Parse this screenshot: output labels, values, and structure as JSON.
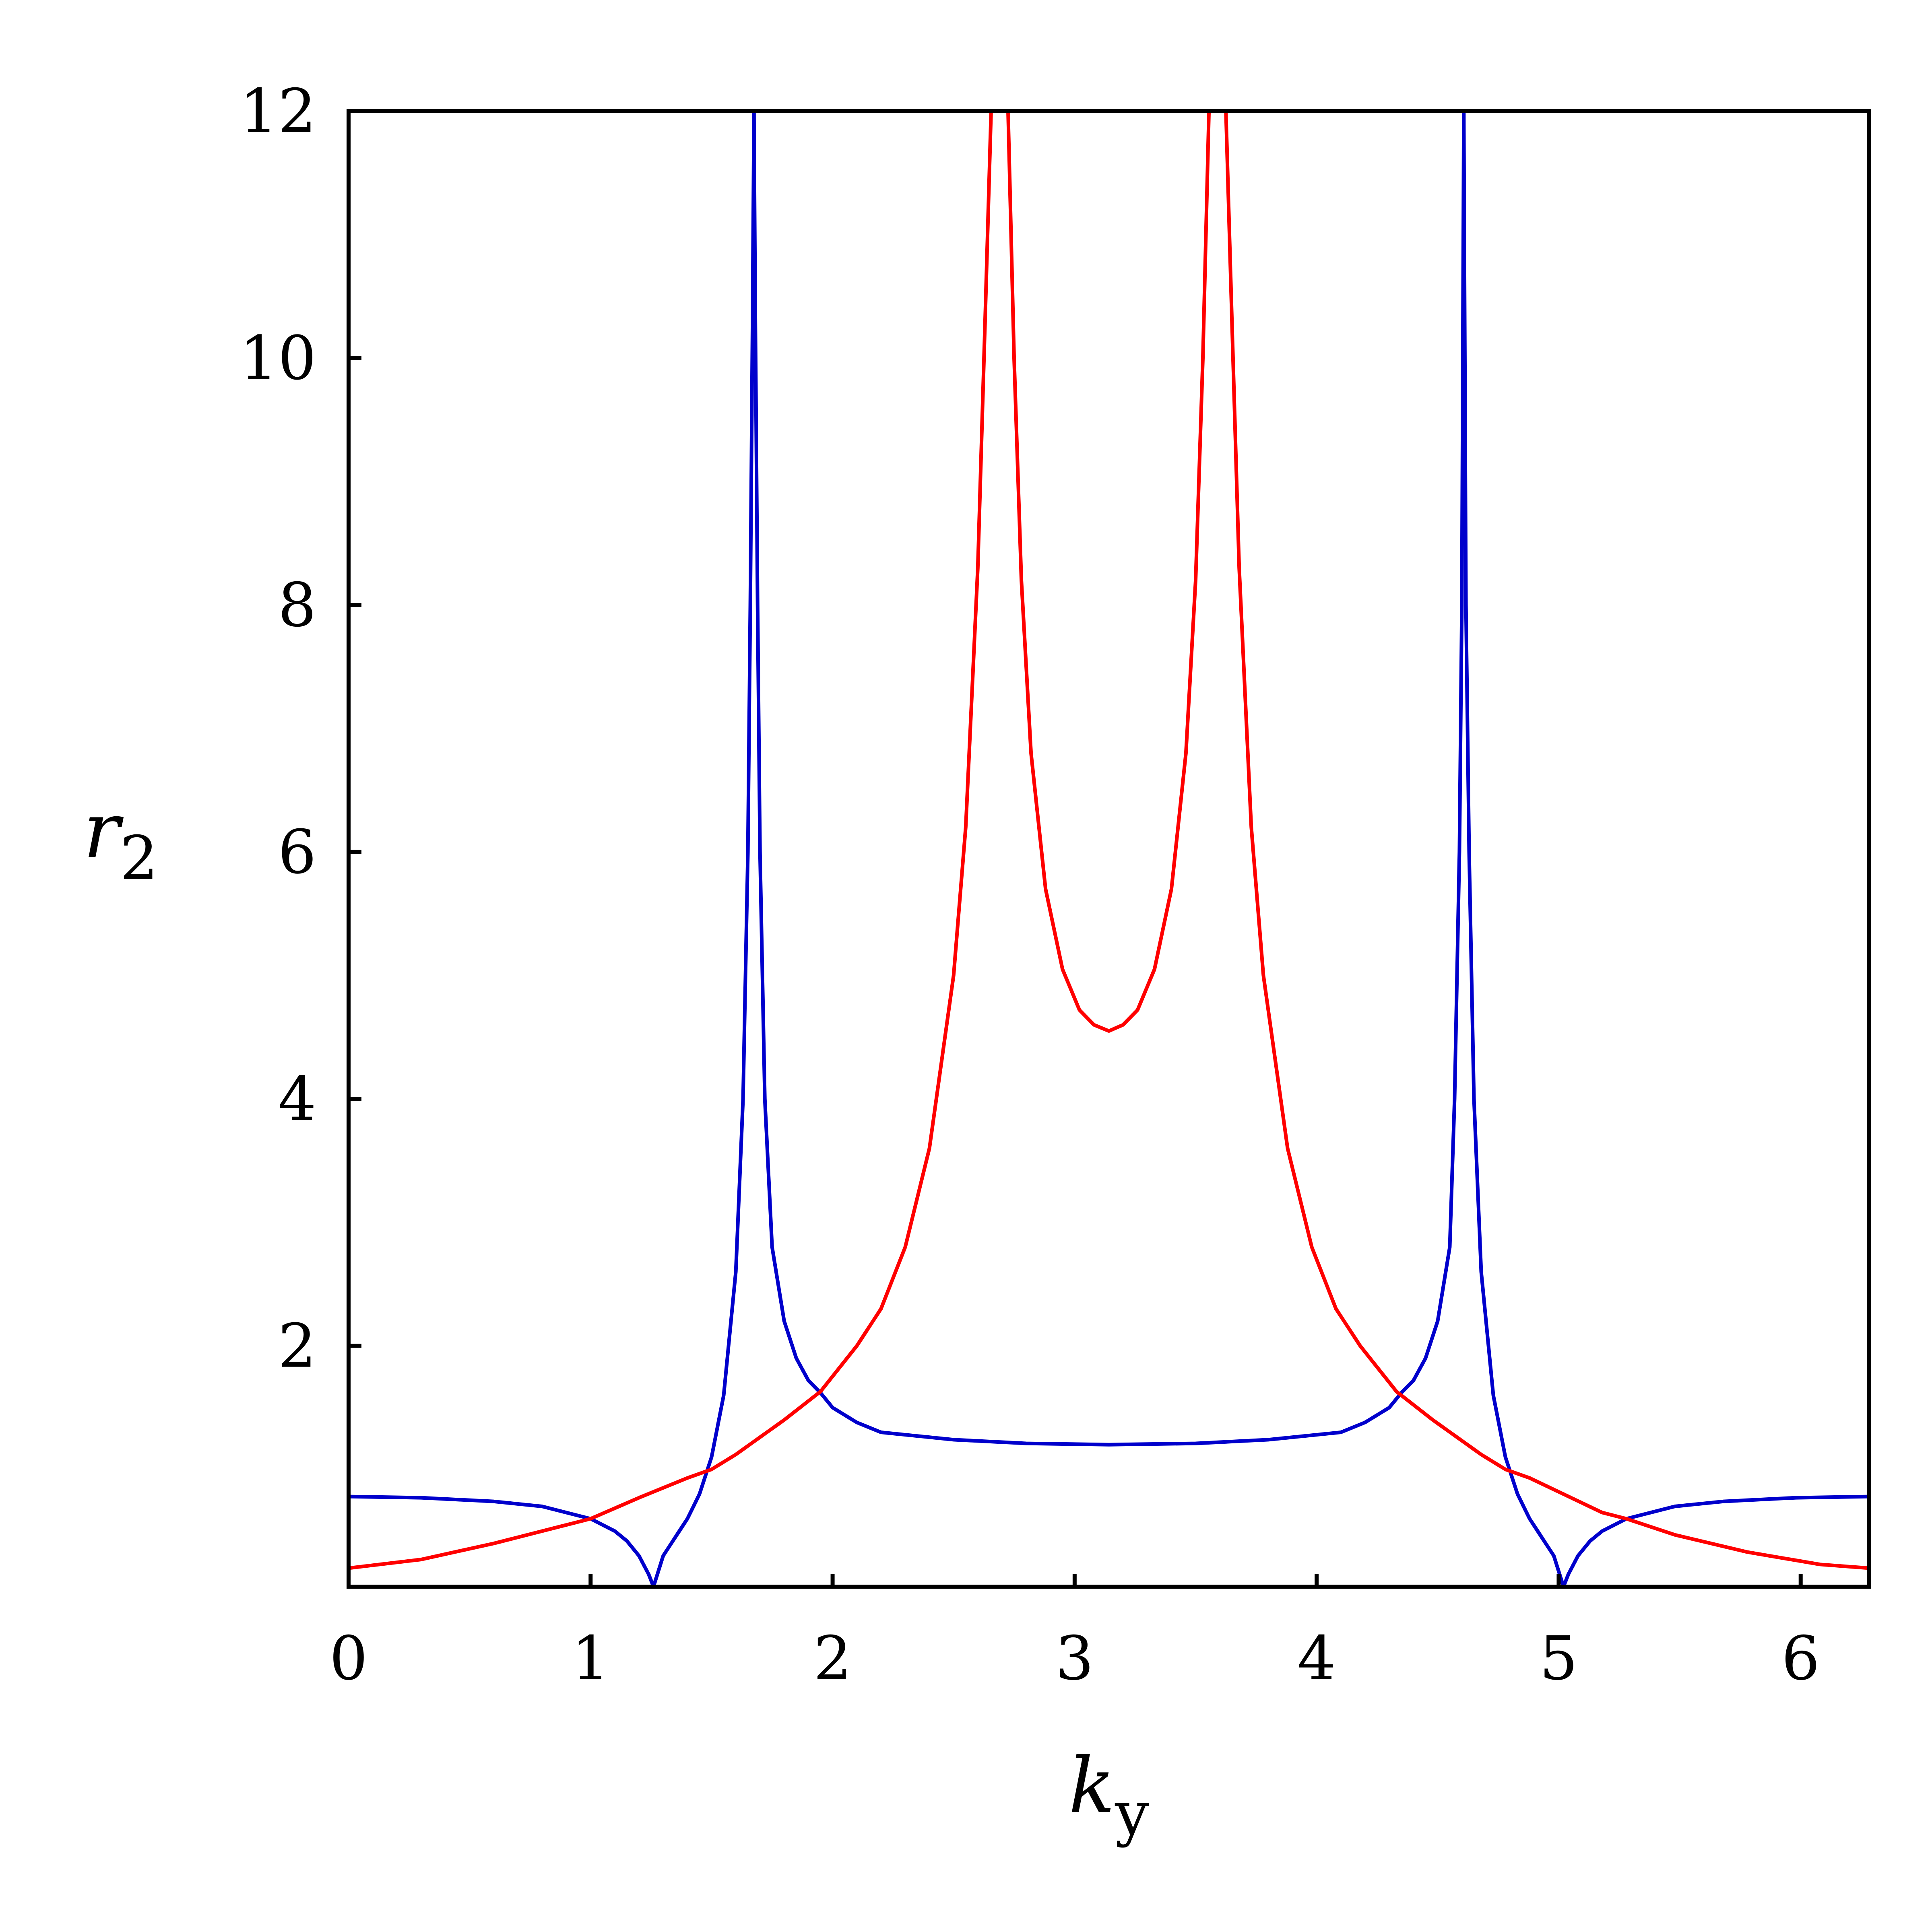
{
  "chart_data": {
    "type": "line",
    "title": "",
    "xlabel": "k",
    "xlabel_sub": "y",
    "ylabel": "r",
    "ylabel_sub": "2",
    "xlim": [
      0,
      6.2832
    ],
    "ylim": [
      0.05,
      12
    ],
    "x_ticks": [
      0,
      1,
      2,
      3,
      4,
      5,
      6
    ],
    "x_tick_labels": [
      "0",
      "1",
      "2",
      "3",
      "4",
      "5",
      "6"
    ],
    "y_ticks": [
      2,
      4,
      6,
      8,
      10,
      12
    ],
    "y_tick_labels": [
      "2",
      "4",
      "6",
      "8",
      "10",
      "12"
    ],
    "grid": false,
    "legend": "none",
    "series": [
      {
        "color": "#0000cc",
        "segments": [
          {
            "x": [
              0,
              0.3,
              0.6,
              0.8,
              1.0,
              1.1,
              1.15,
              1.2,
              1.24,
              1.26
            ],
            "y": [
              0.78,
              0.77,
              0.74,
              0.7,
              0.6,
              0.5,
              0.42,
              0.3,
              0.15,
              0.05
            ]
          },
          {
            "x": [
              1.26,
              1.3,
              1.35,
              1.4,
              1.45,
              1.5,
              1.55,
              1.6,
              1.63,
              1.65,
              1.66,
              1.67,
              1.675
            ],
            "y": [
              0.05,
              0.3,
              0.45,
              0.6,
              0.8,
              1.1,
              1.6,
              2.6,
              4.0,
              6.0,
              8.0,
              10.5,
              12
            ]
          },
          {
            "x": [
              1.675,
              1.68,
              1.69,
              1.7,
              1.72,
              1.75,
              1.8,
              1.85,
              1.9,
              1.95,
              2.0,
              2.1,
              2.2,
              2.5,
              2.8,
              3.1416,
              3.5,
              3.8,
              4.1,
              4.2,
              4.3,
              4.35,
              4.4,
              4.45,
              4.5,
              4.55,
              4.57,
              4.59,
              4.6,
              4.608
            ],
            "y": [
              12,
              10.5,
              8.0,
              6.0,
              4.0,
              2.8,
              2.2,
              1.9,
              1.72,
              1.62,
              1.5,
              1.38,
              1.3,
              1.24,
              1.21,
              1.2,
              1.21,
              1.24,
              1.3,
              1.38,
              1.5,
              1.62,
              1.72,
              1.9,
              2.2,
              2.8,
              4.0,
              6.0,
              8.0,
              12
            ]
          },
          {
            "x": [
              4.608,
              4.617,
              4.63,
              4.65,
              4.68,
              4.73,
              4.78,
              4.83,
              4.88,
              4.93,
              4.98,
              5.02
            ],
            "y": [
              12,
              8.0,
              6.0,
              4.0,
              2.6,
              1.6,
              1.1,
              0.8,
              0.6,
              0.45,
              0.3,
              0.05
            ]
          },
          {
            "x": [
              5.02,
              5.04,
              5.08,
              5.13,
              5.18,
              5.28,
              5.48,
              5.68,
              5.98,
              6.2832
            ],
            "y": [
              0.05,
              0.15,
              0.3,
              0.42,
              0.5,
              0.6,
              0.7,
              0.74,
              0.77,
              0.78
            ]
          }
        ]
      },
      {
        "color": "#ff0000",
        "segments": [
          {
            "x": [
              0,
              0.3,
              0.6,
              0.9,
              1.0,
              1.2,
              1.4,
              1.5,
              1.6,
              1.8,
              1.95,
              2.1,
              2.2,
              2.3,
              2.4,
              2.5,
              2.55,
              2.6,
              2.63,
              2.655
            ],
            "y": [
              0.2,
              0.27,
              0.4,
              0.55,
              0.6,
              0.77,
              0.93,
              1.0,
              1.12,
              1.4,
              1.63,
              2.0,
              2.3,
              2.8,
              3.6,
              5.0,
              6.2,
              8.3,
              10.3,
              12
            ]
          },
          {
            "x": [
              2.725,
              2.75,
              2.78,
              2.82,
              2.88,
              2.95,
              3.02,
              3.08,
              3.1416,
              3.2,
              3.26,
              3.33,
              3.4,
              3.46,
              3.5,
              3.53,
              3.555
            ],
            "y": [
              12,
              10.0,
              8.2,
              6.8,
              5.7,
              5.05,
              4.72,
              4.6,
              4.55,
              4.6,
              4.72,
              5.05,
              5.7,
              6.8,
              8.2,
              10.0,
              12
            ]
          },
          {
            "x": [
              3.625,
              3.65,
              3.68,
              3.73,
              3.78,
              3.88,
              3.98,
              4.08,
              4.18,
              4.33,
              4.48,
              4.68,
              4.78,
              4.88,
              5.18,
              5.28,
              5.48,
              5.78,
              6.08,
              6.2832
            ],
            "y": [
              12,
              10.3,
              8.3,
              6.2,
              5.0,
              3.6,
              2.8,
              2.3,
              2.0,
              1.63,
              1.4,
              1.12,
              1.0,
              0.93,
              0.65,
              0.6,
              0.47,
              0.33,
              0.23,
              0.2
            ]
          }
        ]
      }
    ]
  }
}
